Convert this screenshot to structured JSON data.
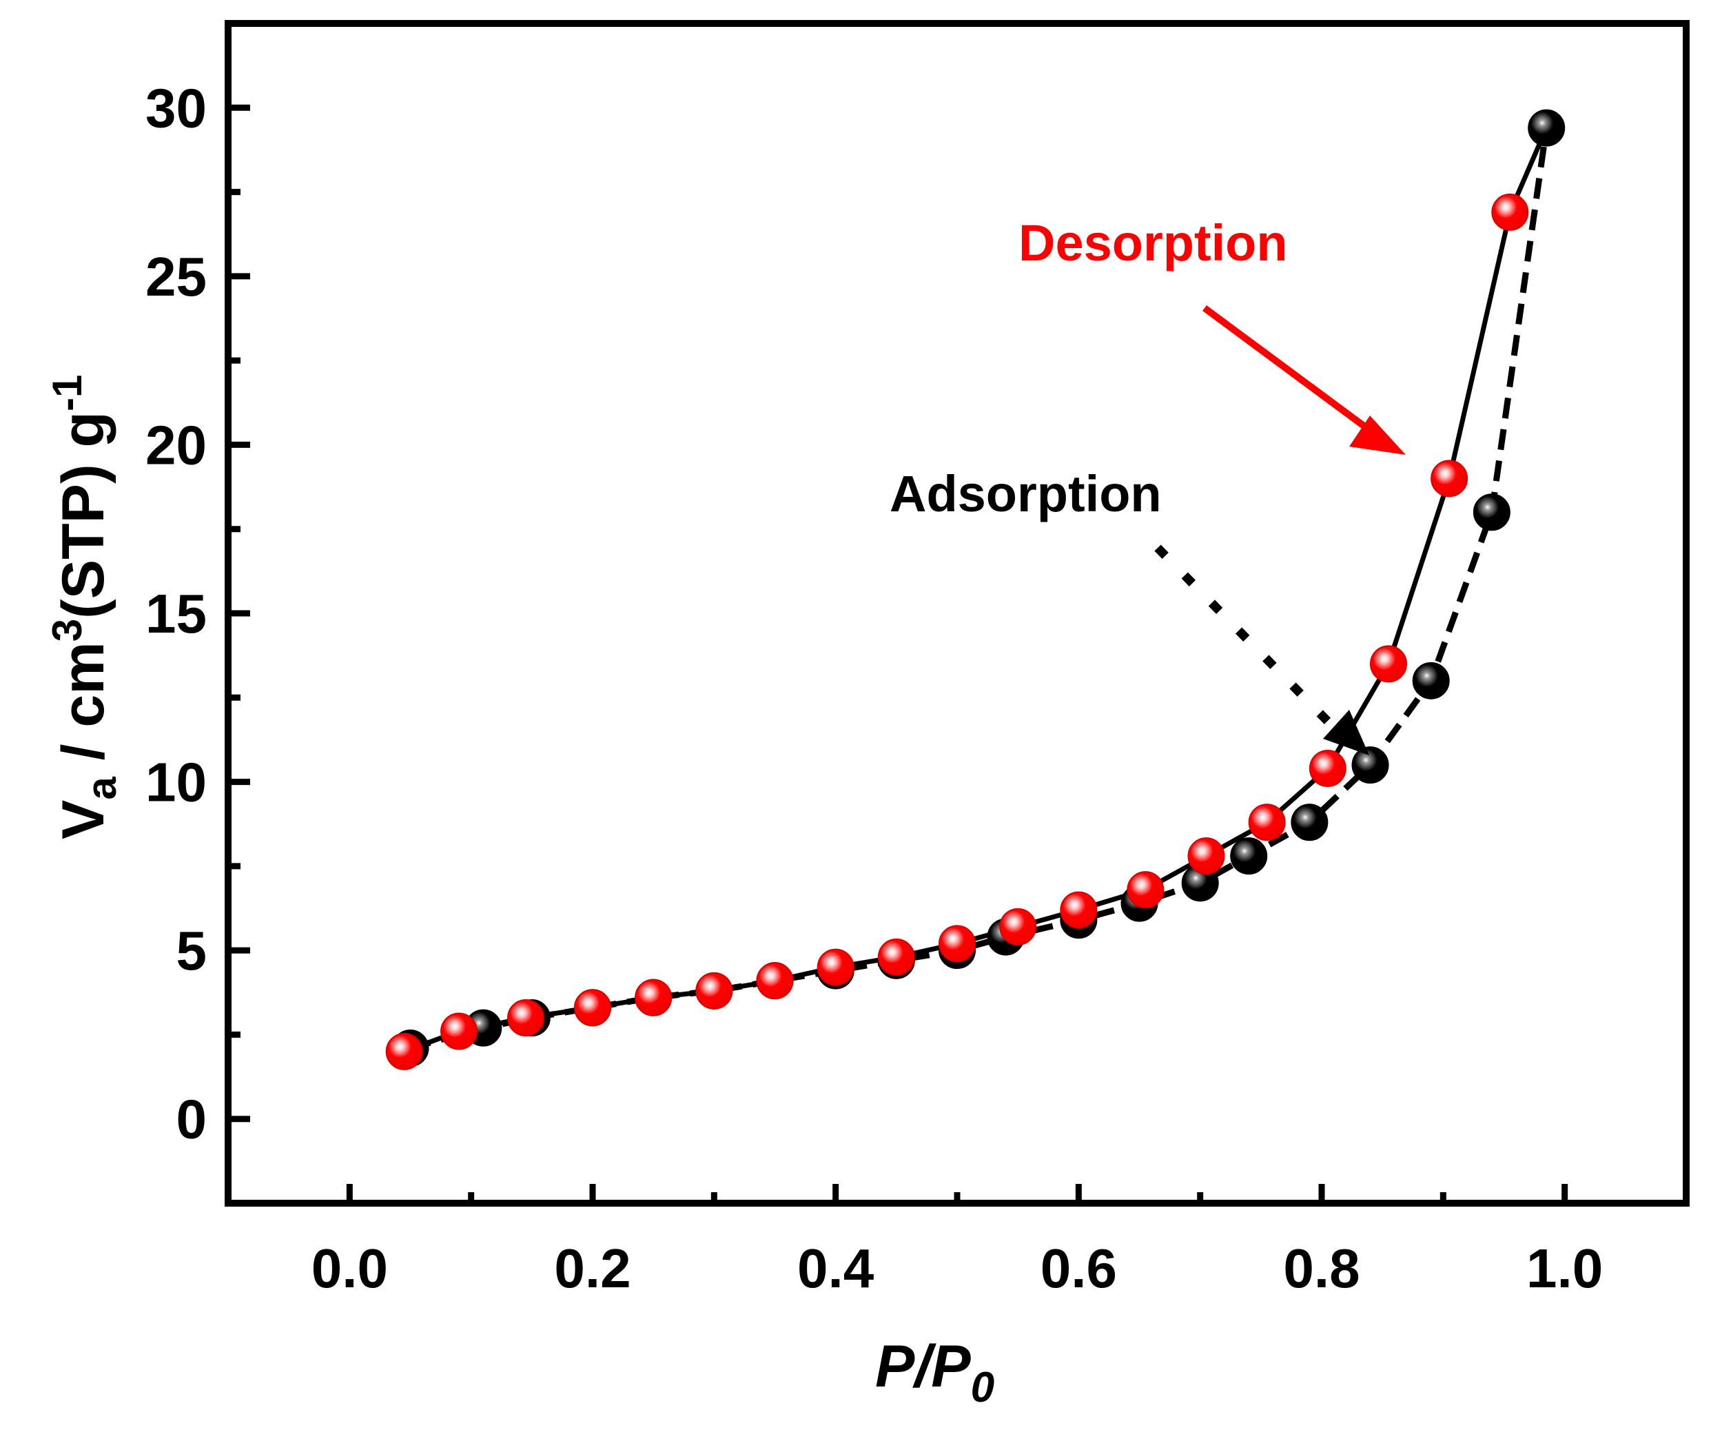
{
  "chart_data": {
    "type": "line",
    "xlabel": {
      "main": "P/P",
      "sub": "0"
    },
    "ylabel": {
      "a": "V",
      "a_sub": "a",
      "b": " / cm",
      "b_sup": "3",
      "c": "(STP) g",
      "c_sup": "-1"
    },
    "xlim": [
      -0.1,
      1.1
    ],
    "ylim": [
      -2.5,
      32.5
    ],
    "x_ticks": [
      0.0,
      0.2,
      0.4,
      0.6,
      0.8,
      1.0
    ],
    "x_tick_labels": [
      "0.0",
      "0.2",
      "0.4",
      "0.6",
      "0.8",
      "1.0"
    ],
    "y_ticks": [
      0,
      5,
      10,
      15,
      20,
      25,
      30
    ],
    "y_tick_labels": [
      "0",
      "5",
      "10",
      "15",
      "20",
      "25",
      "30"
    ],
    "grid": false,
    "series": [
      {
        "name": "Adsorption",
        "color": "#000000",
        "marker_highlight": "#9a9a9a",
        "line_style": "dashed",
        "x": [
          0.05,
          0.11,
          0.15,
          0.2,
          0.25,
          0.3,
          0.35,
          0.4,
          0.45,
          0.5,
          0.54,
          0.6,
          0.65,
          0.7,
          0.74,
          0.79,
          0.84,
          0.89,
          0.94,
          0.985
        ],
        "y": [
          2.1,
          2.7,
          3.0,
          3.3,
          3.6,
          3.8,
          4.1,
          4.4,
          4.7,
          5.0,
          5.4,
          5.9,
          6.4,
          7.0,
          7.8,
          8.8,
          10.5,
          13.0,
          18.0,
          29.4
        ]
      },
      {
        "name": "Desorption",
        "color": "#ff0000",
        "marker_highlight": "#ffd0d0",
        "line_style": "solid",
        "x": [
          0.045,
          0.09,
          0.145,
          0.2,
          0.25,
          0.3,
          0.35,
          0.4,
          0.45,
          0.5,
          0.55,
          0.6,
          0.655,
          0.705,
          0.755,
          0.805,
          0.855,
          0.905,
          0.955
        ],
        "y": [
          2.0,
          2.6,
          3.0,
          3.3,
          3.6,
          3.8,
          4.1,
          4.5,
          4.8,
          5.2,
          5.7,
          6.2,
          6.8,
          7.8,
          8.8,
          10.4,
          13.5,
          19.0,
          26.9
        ]
      }
    ],
    "annotations": [
      {
        "text": "Desorption",
        "color": "#ff0000",
        "arrow": "solid"
      },
      {
        "text": "Adsorption",
        "color": "#000000",
        "arrow": "dotted"
      }
    ]
  }
}
